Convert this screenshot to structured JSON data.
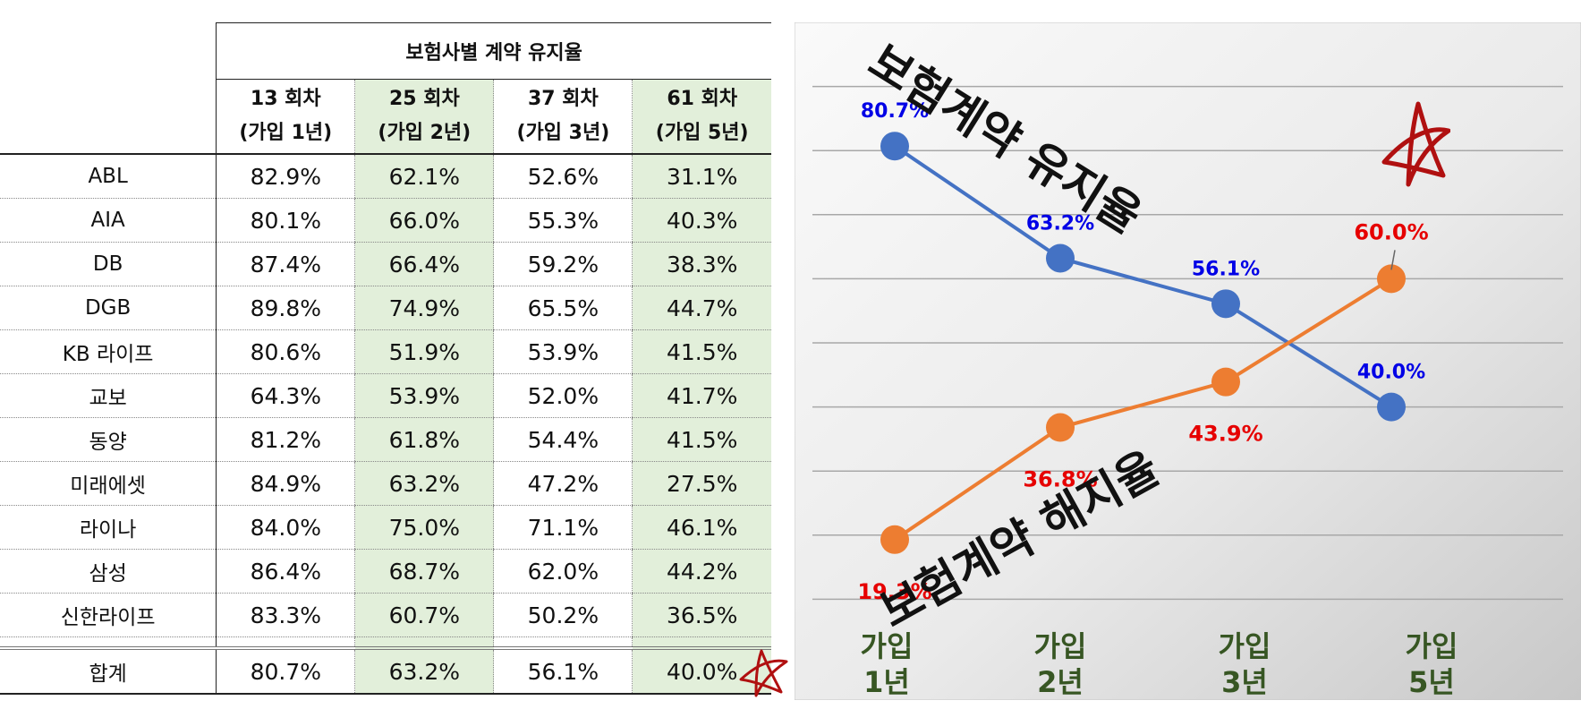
{
  "table": {
    "caption": "보험사별 계약 유지율",
    "columns": [
      {
        "round": "13 회차",
        "join": "(가입 1년)"
      },
      {
        "round": "25 회차",
        "join": "(가입 2년)"
      },
      {
        "round": "37 회차",
        "join": "(가입 3년)"
      },
      {
        "round": "61 회차",
        "join": "(가입 5년)"
      }
    ],
    "rows": [
      {
        "name": "ABL",
        "values": [
          "82.9%",
          "62.1%",
          "52.6%",
          "31.1%"
        ]
      },
      {
        "name": "AIA",
        "values": [
          "80.1%",
          "66.0%",
          "55.3%",
          "40.3%"
        ]
      },
      {
        "name": "DB",
        "values": [
          "87.4%",
          "66.4%",
          "59.2%",
          "38.3%"
        ]
      },
      {
        "name": "DGB",
        "values": [
          "89.8%",
          "74.9%",
          "65.5%",
          "44.7%"
        ]
      },
      {
        "name": "KB 라이프",
        "values": [
          "80.6%",
          "51.9%",
          "53.9%",
          "41.5%"
        ]
      },
      {
        "name": "교보",
        "values": [
          "64.3%",
          "53.9%",
          "52.0%",
          "41.7%"
        ]
      },
      {
        "name": "동양",
        "values": [
          "81.2%",
          "61.8%",
          "54.4%",
          "41.5%"
        ]
      },
      {
        "name": "미래에셋",
        "values": [
          "84.9%",
          "63.2%",
          "47.2%",
          "27.5%"
        ]
      },
      {
        "name": "라이나",
        "values": [
          "84.0%",
          "75.0%",
          "71.1%",
          "46.1%"
        ]
      },
      {
        "name": "삼성",
        "values": [
          "86.4%",
          "68.7%",
          "62.0%",
          "44.2%"
        ]
      },
      {
        "name": "신한라이프",
        "values": [
          "83.3%",
          "60.7%",
          "50.2%",
          "36.5%"
        ]
      }
    ],
    "total": {
      "name": "합계",
      "values": [
        "80.7%",
        "63.2%",
        "56.1%",
        "40.0%"
      ]
    }
  },
  "chart_data": {
    "type": "line",
    "categories": [
      "가입\n1년",
      "가입\n2년",
      "가입\n3년",
      "가입\n5년"
    ],
    "series": [
      {
        "name": "보험계약 유지율",
        "values": [
          80.7,
          63.2,
          56.1,
          40.0
        ],
        "labels": [
          "80.7%",
          "63.2%",
          "56.1%",
          "40.0%"
        ],
        "color": "#4472c4",
        "label_color": "#0000e6"
      },
      {
        "name": "보험계약 해지율",
        "values": [
          19.3,
          36.8,
          43.9,
          60.0
        ],
        "labels": [
          "19.3%",
          "36.8%",
          "43.9%",
          "60.0%"
        ],
        "color": "#ed7d31",
        "label_color": "#e60000"
      }
    ],
    "ylim": [
      0,
      100
    ],
    "grid": true,
    "category_color": "#375623"
  },
  "colors": {
    "star": "#b01010",
    "highlight_green": "#e2efda"
  }
}
